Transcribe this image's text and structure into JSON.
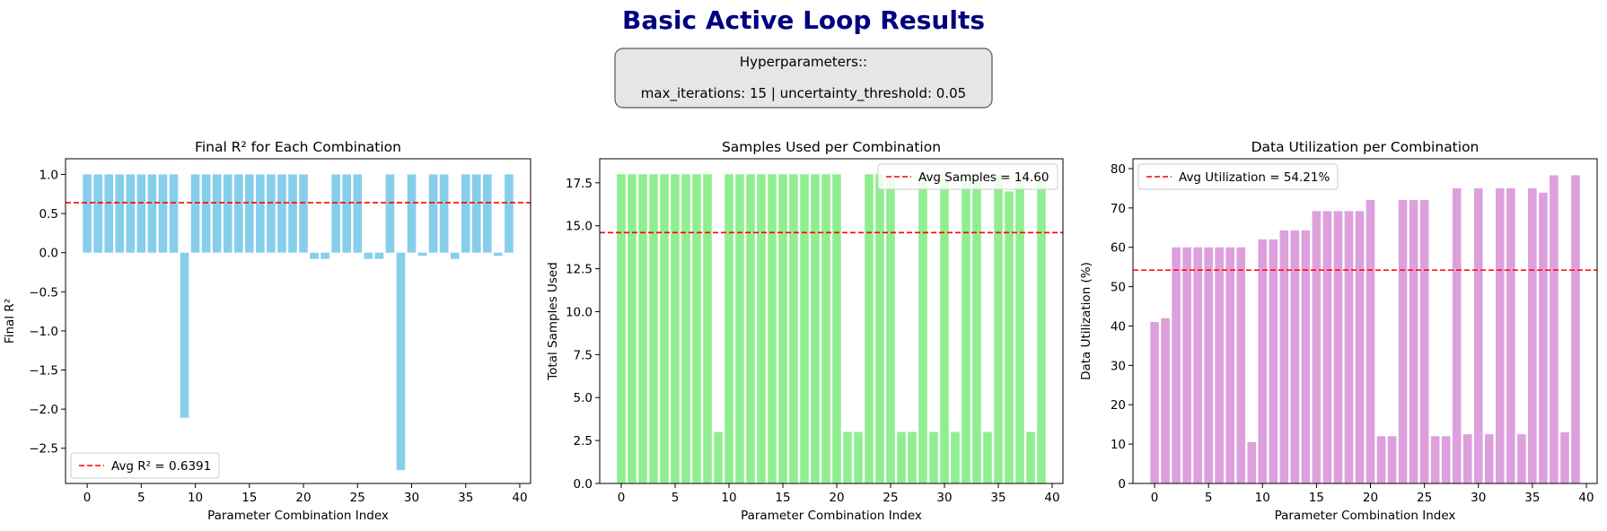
{
  "figure": {
    "title": "Basic Active Loop Results",
    "title_color": "#000080",
    "hyperparameters": {
      "heading": "Hyperparameters::",
      "text": "max_iterations: 15 | uncertainty_threshold: 0.05"
    }
  },
  "chart_data": [
    {
      "type": "bar",
      "title": "Final R² for Each Combination",
      "xlabel": "Parameter Combination Index",
      "ylabel": "Final R²",
      "color": "#87CEEB",
      "x": [
        0,
        1,
        2,
        3,
        4,
        5,
        6,
        7,
        8,
        9,
        10,
        11,
        12,
        13,
        14,
        15,
        16,
        17,
        18,
        19,
        20,
        21,
        22,
        23,
        24,
        25,
        26,
        27,
        28,
        29,
        30,
        31,
        32,
        33,
        34,
        35,
        36,
        37,
        38,
        39
      ],
      "values": [
        1.0,
        1.0,
        1.0,
        1.0,
        1.0,
        1.0,
        1.0,
        1.0,
        1.0,
        -2.11,
        1.0,
        1.0,
        1.0,
        1.0,
        1.0,
        1.0,
        1.0,
        1.0,
        1.0,
        1.0,
        1.0,
        -0.08,
        -0.08,
        1.0,
        1.0,
        1.0,
        -0.08,
        -0.08,
        1.0,
        -2.78,
        1.0,
        -0.04,
        1.0,
        1.0,
        -0.08,
        1.0,
        1.0,
        1.0,
        -0.04,
        1.0
      ],
      "avg_line": {
        "value": 0.6391,
        "label": "Avg R² = 0.6391",
        "color": "#FF0000"
      },
      "legend_placement": "lower-left",
      "xlim": [
        -2,
        41
      ],
      "ylim": [
        -2.95,
        1.2
      ],
      "xticks": [
        0,
        5,
        10,
        15,
        20,
        25,
        30,
        35,
        40
      ],
      "xtick_labels": [
        "0",
        "5",
        "10",
        "15",
        "20",
        "25",
        "30",
        "35",
        "40"
      ],
      "yticks": [
        -2.5,
        -2.0,
        -1.5,
        -1.0,
        -0.5,
        0.0,
        0.5,
        1.0
      ],
      "ytick_labels": [
        "−2.5",
        "−2.0",
        "−1.5",
        "−1.0",
        "−0.5",
        "0.0",
        "0.5",
        "1.0"
      ]
    },
    {
      "type": "bar",
      "title": "Samples Used per Combination",
      "xlabel": "Parameter Combination Index",
      "ylabel": "Total Samples Used",
      "color": "#90EE90",
      "x": [
        0,
        1,
        2,
        3,
        4,
        5,
        6,
        7,
        8,
        9,
        10,
        11,
        12,
        13,
        14,
        15,
        16,
        17,
        18,
        19,
        20,
        21,
        22,
        23,
        24,
        25,
        26,
        27,
        28,
        29,
        30,
        31,
        32,
        33,
        34,
        35,
        36,
        37,
        38,
        39
      ],
      "values": [
        18,
        18,
        18,
        18,
        18,
        18,
        18,
        18,
        18,
        3,
        18,
        18,
        18,
        18,
        18,
        18,
        18,
        18,
        18,
        18,
        18,
        3,
        3,
        18,
        18,
        18,
        3,
        3,
        18,
        3,
        18,
        3,
        18,
        18,
        3,
        18,
        17,
        18,
        3,
        18
      ],
      "avg_line": {
        "value": 14.6,
        "label": "Avg Samples = 14.60",
        "color": "#FF0000"
      },
      "legend_placement": "upper-right",
      "xlim": [
        -2,
        41
      ],
      "ylim": [
        0,
        18.9
      ],
      "xticks": [
        0,
        5,
        10,
        15,
        20,
        25,
        30,
        35,
        40
      ],
      "xtick_labels": [
        "0",
        "5",
        "10",
        "15",
        "20",
        "25",
        "30",
        "35",
        "40"
      ],
      "yticks": [
        0,
        2.5,
        5,
        7.5,
        10,
        12.5,
        15,
        17.5
      ],
      "ytick_labels": [
        "0.0",
        "2.5",
        "5.0",
        "7.5",
        "10.0",
        "12.5",
        "15.0",
        "17.5"
      ]
    },
    {
      "type": "bar",
      "title": "Data Utilization per Combination",
      "xlabel": "Parameter Combination Index",
      "ylabel": "Data Utilization (%)",
      "color": "#DDA0DD",
      "x": [
        0,
        1,
        2,
        3,
        4,
        5,
        6,
        7,
        8,
        9,
        10,
        11,
        12,
        13,
        14,
        15,
        16,
        17,
        18,
        19,
        20,
        21,
        22,
        23,
        24,
        25,
        26,
        27,
        28,
        29,
        30,
        31,
        32,
        33,
        34,
        35,
        36,
        37,
        38,
        39
      ],
      "values": [
        41,
        42,
        60,
        60,
        60,
        60,
        60,
        60,
        60,
        10.5,
        62,
        62,
        64.3,
        64.3,
        64.3,
        69.2,
        69.2,
        69.2,
        69.2,
        69.2,
        72,
        12,
        12,
        72,
        72,
        72,
        12,
        12,
        75,
        12.5,
        75,
        12.5,
        75,
        75,
        12.5,
        75,
        73.9,
        78.3,
        13,
        78.3
      ],
      "avg_line": {
        "value": 54.21,
        "label": "Avg Utilization = 54.21%",
        "color": "#FF0000"
      },
      "legend_placement": "upper-left",
      "xlim": [
        -2,
        41
      ],
      "ylim": [
        0,
        82.5
      ],
      "xticks": [
        0,
        5,
        10,
        15,
        20,
        25,
        30,
        35,
        40
      ],
      "xtick_labels": [
        "0",
        "5",
        "10",
        "15",
        "20",
        "25",
        "30",
        "35",
        "40"
      ],
      "yticks": [
        0,
        10,
        20,
        30,
        40,
        50,
        60,
        70,
        80
      ],
      "ytick_labels": [
        "0",
        "10",
        "20",
        "30",
        "40",
        "50",
        "60",
        "70",
        "80"
      ]
    }
  ]
}
